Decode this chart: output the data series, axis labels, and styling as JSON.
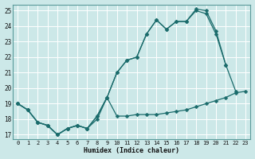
{
  "xlabel": "Humidex (Indice chaleur)",
  "bg_color": "#cce8e8",
  "grid_color": "#ffffff",
  "line_color": "#1a6b6b",
  "xlim_min": -0.5,
  "xlim_max": 23.5,
  "ylim_min": 16.7,
  "ylim_max": 25.4,
  "xticks": [
    0,
    1,
    2,
    3,
    4,
    5,
    6,
    7,
    8,
    9,
    10,
    11,
    12,
    13,
    14,
    15,
    16,
    17,
    18,
    19,
    20,
    21,
    22,
    23
  ],
  "yticks": [
    17,
    18,
    19,
    20,
    21,
    22,
    23,
    24,
    25
  ],
  "x_all": [
    0,
    1,
    2,
    3,
    4,
    5,
    6,
    7,
    8,
    9,
    10,
    11,
    12,
    13,
    14,
    15,
    16,
    17,
    18,
    19,
    20,
    21,
    22,
    23
  ],
  "line_min": [
    19.0,
    18.6,
    17.8,
    17.6,
    17.0,
    17.4,
    17.6,
    17.4,
    18.0,
    19.4,
    18.2,
    18.2,
    18.3,
    18.3,
    18.3,
    18.4,
    18.5,
    18.6,
    18.8,
    19.0,
    19.2,
    19.4,
    19.7,
    19.8
  ],
  "line_mid_x": [
    0,
    1,
    2,
    3,
    4,
    5,
    6,
    7,
    8,
    9,
    10,
    11,
    12,
    13,
    14,
    15,
    16,
    17,
    18,
    19,
    20,
    21,
    22
  ],
  "line_mid": [
    19.0,
    18.6,
    17.8,
    17.6,
    17.0,
    17.4,
    17.6,
    17.4,
    18.2,
    19.4,
    21.0,
    21.8,
    22.0,
    23.5,
    24.4,
    23.8,
    24.3,
    24.3,
    25.0,
    24.8,
    23.5,
    21.5,
    19.8
  ],
  "line_top_x": [
    0,
    1,
    2,
    3,
    4,
    5,
    6,
    7,
    8,
    9,
    10,
    11,
    12,
    13,
    14,
    15,
    16,
    17,
    18,
    19,
    20,
    21
  ],
  "line_top": [
    19.0,
    18.6,
    17.8,
    17.6,
    17.0,
    17.4,
    17.6,
    17.4,
    18.2,
    19.4,
    21.0,
    21.8,
    22.0,
    23.5,
    24.4,
    23.8,
    24.3,
    24.3,
    25.1,
    25.0,
    23.7,
    21.5
  ]
}
